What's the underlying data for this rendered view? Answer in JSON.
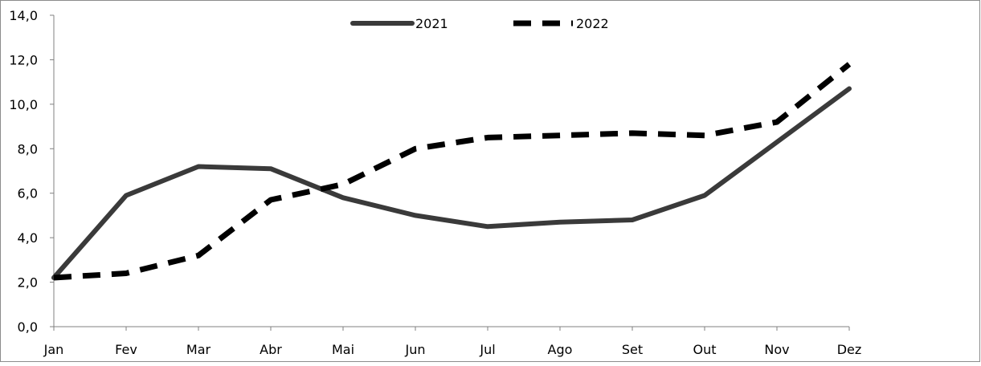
{
  "chart_data": {
    "type": "line",
    "categories": [
      "Jan",
      "Fev",
      "Mar",
      "Abr",
      "Mai",
      "Jun",
      "Jul",
      "Ago",
      "Set",
      "Out",
      "Nov",
      "Dez"
    ],
    "series": [
      {
        "name": "2021",
        "values": [
          2.2,
          5.9,
          7.2,
          7.1,
          5.8,
          5.0,
          4.5,
          4.7,
          4.8,
          5.9,
          8.3,
          10.7
        ],
        "color": "#3a3a3a",
        "style": "solid"
      },
      {
        "name": "2022",
        "values": [
          2.2,
          2.4,
          3.2,
          5.7,
          6.4,
          8.0,
          8.5,
          8.6,
          8.7,
          8.6,
          9.2,
          11.8
        ],
        "color": "#000000",
        "style": "dashed"
      }
    ],
    "title": "",
    "xlabel": "",
    "ylabel": "",
    "ylim": [
      0,
      14
    ],
    "yticks": [
      "0,0",
      "2,0",
      "4,0",
      "6,0",
      "8,0",
      "10,0",
      "12,0",
      "14,0"
    ],
    "grid": false,
    "legend": "top-center"
  }
}
